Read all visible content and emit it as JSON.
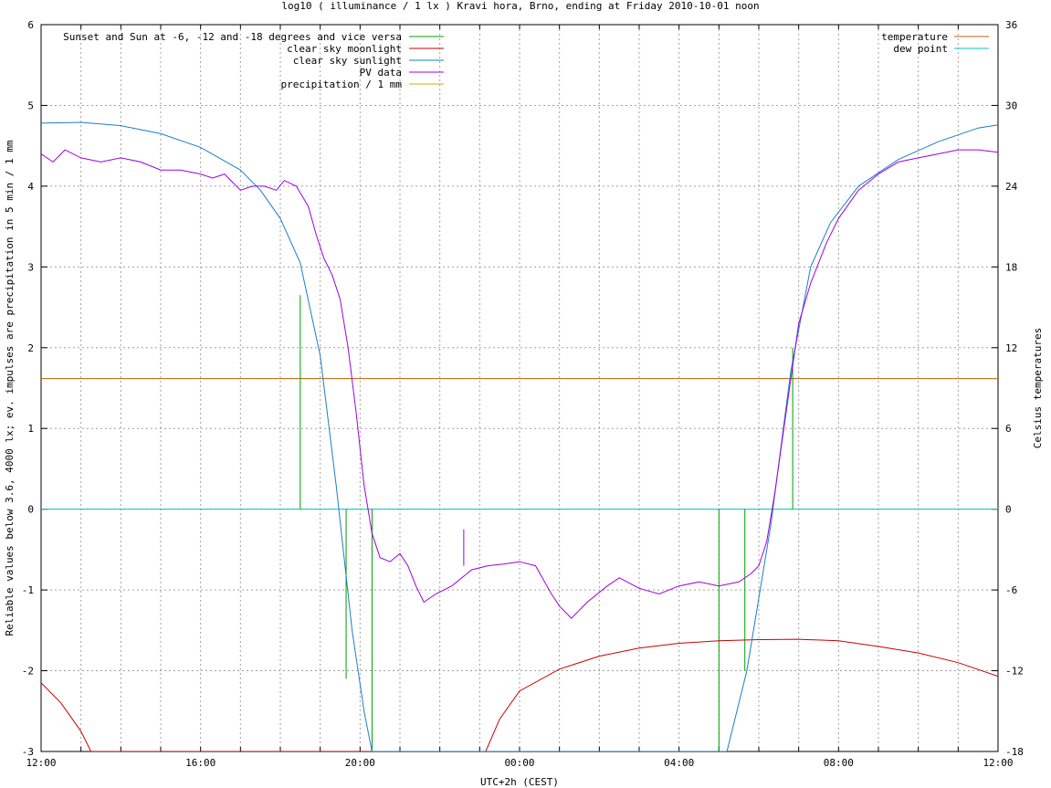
{
  "chart_data": {
    "type": "line",
    "title": "log10 ( illuminance / 1 lx ) Kravi hora, Brno, ending at Friday 2010-10-01 noon",
    "xlabel": "UTC+2h (CEST)",
    "ylabel": "Reliable values below 3.6, 4000 lx; ev. impulses are precipitation in 5 min / 1 mm",
    "y2label": "Celsius temperatures",
    "xlim": [
      0,
      24
    ],
    "ylim": [
      -3,
      6
    ],
    "y2lim": [
      -18,
      36
    ],
    "x_ticks": [
      {
        "v": 0,
        "label": "12:00"
      },
      {
        "v": 4,
        "label": "16:00"
      },
      {
        "v": 8,
        "label": "20:00"
      },
      {
        "v": 12,
        "label": "00:00"
      },
      {
        "v": 16,
        "label": "04:00"
      },
      {
        "v": 20,
        "label": "08:00"
      },
      {
        "v": 24,
        "label": "12:00"
      }
    ],
    "y_ticks": [
      "-3",
      "-2",
      "-1",
      "0",
      "1",
      "2",
      "3",
      "4",
      "5",
      "6"
    ],
    "y2_ticks": [
      "-18",
      "-12",
      "-6",
      "0",
      "6",
      "12",
      "18",
      "24",
      "30",
      "36"
    ],
    "grid": true,
    "legend_left": [
      {
        "name": "Sunset and Sun at -6, -12 and -18 degrees and vice versa",
        "color": "#00a000"
      },
      {
        "name": "clear sky moonlight",
        "color": "#cc0000"
      },
      {
        "name": "clear sky sunlight",
        "color": "#1a7fc8"
      },
      {
        "name": "PV data",
        "color": "#a000e0"
      },
      {
        "name": "precipitation / 1 mm",
        "color": "#e0a800"
      }
    ],
    "legend_right": [
      {
        "name": "temperature",
        "color": "#c06000"
      },
      {
        "name": "dew point",
        "color": "#00c8c8"
      }
    ],
    "sun_events": [
      {
        "x": 6.5,
        "y": 2.65
      },
      {
        "x": 7.65,
        "y": -2.1
      },
      {
        "x": 8.3,
        "y": -3
      },
      {
        "x": 17.0,
        "y": -3
      },
      {
        "x": 17.65,
        "y": -2.0
      },
      {
        "x": 18.85,
        "y": 2.0
      }
    ],
    "sunlight": [
      [
        0,
        4.78
      ],
      [
        1,
        4.79
      ],
      [
        2,
        4.75
      ],
      [
        3,
        4.65
      ],
      [
        4,
        4.48
      ],
      [
        5,
        4.2
      ],
      [
        5.5,
        3.95
      ],
      [
        6,
        3.6
      ],
      [
        6.5,
        3.05
      ],
      [
        7,
        1.9
      ],
      [
        7.4,
        0.3
      ],
      [
        7.8,
        -1.5
      ],
      [
        8.1,
        -2.5
      ],
      [
        8.3,
        -3
      ],
      [
        17.2,
        -3
      ],
      [
        17.7,
        -2.0
      ],
      [
        18.3,
        -0.2
      ],
      [
        18.8,
        1.7
      ],
      [
        19.3,
        3.0
      ],
      [
        19.8,
        3.55
      ],
      [
        20.5,
        4.0
      ],
      [
        21.5,
        4.33
      ],
      [
        22.5,
        4.55
      ],
      [
        23.5,
        4.72
      ],
      [
        24,
        4.76
      ]
    ],
    "moonlight": [
      [
        0,
        -2.15
      ],
      [
        0.5,
        -2.4
      ],
      [
        1,
        -2.75
      ],
      [
        1.25,
        -3
      ],
      [
        11.15,
        -3
      ],
      [
        11.5,
        -2.6
      ],
      [
        12,
        -2.25
      ],
      [
        13,
        -1.98
      ],
      [
        14,
        -1.82
      ],
      [
        15,
        -1.72
      ],
      [
        16,
        -1.66
      ],
      [
        17,
        -1.63
      ],
      [
        18,
        -1.615
      ],
      [
        19,
        -1.61
      ],
      [
        20,
        -1.63
      ],
      [
        21,
        -1.7
      ],
      [
        22,
        -1.78
      ],
      [
        23,
        -1.9
      ],
      [
        24,
        -2.07
      ]
    ],
    "pv_data": [
      [
        0,
        4.4
      ],
      [
        0.3,
        4.3
      ],
      [
        0.6,
        4.45
      ],
      [
        1,
        4.35
      ],
      [
        1.5,
        4.3
      ],
      [
        2,
        4.35
      ],
      [
        2.5,
        4.3
      ],
      [
        3,
        4.2
      ],
      [
        3.5,
        4.2
      ],
      [
        4,
        4.15
      ],
      [
        4.3,
        4.1
      ],
      [
        4.6,
        4.15
      ],
      [
        5,
        3.95
      ],
      [
        5.3,
        4.0
      ],
      [
        5.6,
        4.0
      ],
      [
        5.9,
        3.95
      ],
      [
        6.1,
        4.07
      ],
      [
        6.4,
        4.0
      ],
      [
        6.7,
        3.75
      ],
      [
        6.9,
        3.4
      ],
      [
        7.1,
        3.1
      ],
      [
        7.3,
        2.9
      ],
      [
        7.5,
        2.6
      ],
      [
        7.7,
        2.0
      ],
      [
        7.9,
        1.2
      ],
      [
        8.1,
        0.3
      ],
      [
        8.3,
        -0.3
      ],
      [
        8.5,
        -0.6
      ],
      [
        8.75,
        -0.65
      ],
      [
        9.0,
        -0.55
      ],
      [
        9.2,
        -0.7
      ],
      [
        9.4,
        -0.95
      ],
      [
        9.6,
        -1.15
      ],
      [
        9.9,
        -1.05
      ],
      [
        10.3,
        -0.95
      ],
      [
        10.8,
        -0.75
      ],
      [
        11.2,
        -0.7
      ],
      [
        11.6,
        -0.68
      ],
      [
        12.0,
        -0.65
      ],
      [
        12.4,
        -0.7
      ],
      [
        12.8,
        -1.05
      ],
      [
        13.0,
        -1.2
      ],
      [
        13.3,
        -1.35
      ],
      [
        13.7,
        -1.15
      ],
      [
        14.2,
        -0.95
      ],
      [
        14.5,
        -0.85
      ],
      [
        15.0,
        -0.98
      ],
      [
        15.5,
        -1.05
      ],
      [
        16.0,
        -0.95
      ],
      [
        16.5,
        -0.9
      ],
      [
        17.0,
        -0.95
      ],
      [
        17.5,
        -0.9
      ],
      [
        17.8,
        -0.8
      ],
      [
        18.0,
        -0.7
      ],
      [
        18.2,
        -0.4
      ],
      [
        18.4,
        0.2
      ],
      [
        18.6,
        0.9
      ],
      [
        18.8,
        1.6
      ],
      [
        19.0,
        2.3
      ],
      [
        19.3,
        2.8
      ],
      [
        19.7,
        3.3
      ],
      [
        20.0,
        3.6
      ],
      [
        20.5,
        3.95
      ],
      [
        21.0,
        4.15
      ],
      [
        21.5,
        4.3
      ],
      [
        22.0,
        4.35
      ],
      [
        22.5,
        4.4
      ],
      [
        23.0,
        4.45
      ],
      [
        23.5,
        4.45
      ],
      [
        24.0,
        4.42
      ]
    ],
    "pv_spike": {
      "x": 10.6,
      "y_from": -0.7,
      "y_to": -0.25
    },
    "temperature_c": 9.7,
    "dew_point_c": 0
  }
}
